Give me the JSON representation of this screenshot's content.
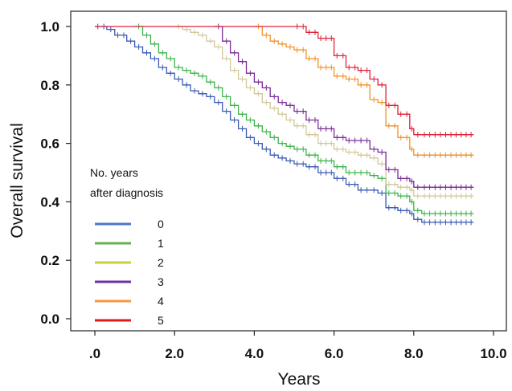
{
  "chart_data": {
    "type": "line",
    "xlabel": "Years",
    "ylabel": "Overall survival",
    "xlim": [
      0,
      10
    ],
    "ylim": [
      0,
      1
    ],
    "x_ticks": [
      ".0",
      "2.0",
      "4.0",
      "6.0",
      "8.0",
      "10.0"
    ],
    "y_ticks": [
      "0.0",
      "0.2",
      "0.4",
      "0.6",
      "0.8",
      "1.0"
    ],
    "grid": false,
    "legend": {
      "title_lines": [
        "No. years",
        "after diagnosis"
      ],
      "placement": "lower-left"
    },
    "series": [
      {
        "name": "0",
        "color": "#3a5bb5",
        "x": [
          0.0,
          0.3,
          0.5,
          0.8,
          1.0,
          1.2,
          1.4,
          1.6,
          1.8,
          2.0,
          2.2,
          2.4,
          2.6,
          2.8,
          3.0,
          3.2,
          3.4,
          3.6,
          3.8,
          4.0,
          4.2,
          4.4,
          4.6,
          4.8,
          5.0,
          5.3,
          5.6,
          6.0,
          6.3,
          6.6,
          6.9,
          7.1,
          7.3,
          7.6,
          7.9,
          8.0,
          8.2,
          8.6,
          9.0,
          9.5
        ],
        "y": [
          1.0,
          0.99,
          0.97,
          0.95,
          0.93,
          0.91,
          0.89,
          0.86,
          0.84,
          0.82,
          0.8,
          0.78,
          0.77,
          0.76,
          0.74,
          0.71,
          0.68,
          0.65,
          0.62,
          0.6,
          0.58,
          0.56,
          0.55,
          0.54,
          0.53,
          0.52,
          0.5,
          0.48,
          0.46,
          0.44,
          0.44,
          0.43,
          0.38,
          0.37,
          0.36,
          0.34,
          0.33,
          0.33,
          0.33,
          0.33
        ]
      },
      {
        "name": "1",
        "color": "#3cb44b",
        "x": [
          1.0,
          1.2,
          1.4,
          1.6,
          1.8,
          2.0,
          2.2,
          2.4,
          2.6,
          2.8,
          3.0,
          3.2,
          3.4,
          3.6,
          3.8,
          4.0,
          4.2,
          4.4,
          4.6,
          4.8,
          5.0,
          5.3,
          5.6,
          6.0,
          6.3,
          6.6,
          6.9,
          7.1,
          7.3,
          7.6,
          7.9,
          8.0,
          8.2,
          8.6,
          9.0,
          9.5
        ],
        "y": [
          1.0,
          0.97,
          0.94,
          0.91,
          0.89,
          0.86,
          0.85,
          0.84,
          0.83,
          0.81,
          0.79,
          0.76,
          0.73,
          0.7,
          0.68,
          0.66,
          0.64,
          0.62,
          0.6,
          0.59,
          0.58,
          0.56,
          0.54,
          0.52,
          0.5,
          0.5,
          0.49,
          0.48,
          0.43,
          0.42,
          0.4,
          0.37,
          0.36,
          0.36,
          0.36,
          0.36
        ]
      },
      {
        "name": "2",
        "color": "#d2c79a",
        "x": [
          2.0,
          2.2,
          2.4,
          2.6,
          2.8,
          3.0,
          3.2,
          3.4,
          3.6,
          3.8,
          4.0,
          4.2,
          4.4,
          4.6,
          4.8,
          5.0,
          5.3,
          5.6,
          6.0,
          6.3,
          6.6,
          6.9,
          7.1,
          7.3,
          7.6,
          7.9,
          8.0,
          8.2,
          8.6,
          9.0,
          9.5
        ],
        "y": [
          1.0,
          0.99,
          0.98,
          0.97,
          0.95,
          0.93,
          0.89,
          0.85,
          0.82,
          0.79,
          0.77,
          0.74,
          0.72,
          0.7,
          0.68,
          0.66,
          0.63,
          0.6,
          0.58,
          0.57,
          0.56,
          0.55,
          0.53,
          0.46,
          0.45,
          0.44,
          0.42,
          0.42,
          0.42,
          0.42,
          0.42
        ]
      },
      {
        "name": "3",
        "color": "#7b2d99",
        "x": [
          3.0,
          3.2,
          3.4,
          3.6,
          3.8,
          4.0,
          4.2,
          4.4,
          4.6,
          4.8,
          5.0,
          5.3,
          5.6,
          6.0,
          6.3,
          6.6,
          6.9,
          7.1,
          7.3,
          7.6,
          7.9,
          8.0,
          8.2,
          8.6,
          9.0,
          9.5
        ],
        "y": [
          1.0,
          0.95,
          0.91,
          0.88,
          0.84,
          0.81,
          0.79,
          0.76,
          0.74,
          0.73,
          0.71,
          0.68,
          0.65,
          0.62,
          0.61,
          0.61,
          0.58,
          0.57,
          0.51,
          0.48,
          0.47,
          0.45,
          0.45,
          0.45,
          0.45,
          0.45
        ]
      },
      {
        "name": "4",
        "color": "#f0922b",
        "x": [
          4.0,
          4.2,
          4.4,
          4.6,
          4.8,
          5.0,
          5.3,
          5.6,
          6.0,
          6.3,
          6.6,
          6.9,
          7.1,
          7.3,
          7.6,
          7.9,
          8.0,
          8.2,
          8.6,
          9.0,
          9.5
        ],
        "y": [
          1.0,
          0.97,
          0.95,
          0.94,
          0.93,
          0.92,
          0.89,
          0.86,
          0.83,
          0.82,
          0.8,
          0.75,
          0.74,
          0.66,
          0.62,
          0.58,
          0.56,
          0.56,
          0.56,
          0.56,
          0.56
        ]
      },
      {
        "name": "5",
        "color": "#e0223a",
        "x": [
          0.0,
          5.0,
          5.3,
          5.6,
          6.0,
          6.3,
          6.6,
          6.9,
          7.1,
          7.3,
          7.6,
          7.9,
          8.0,
          8.2,
          8.6,
          9.0,
          9.5
        ],
        "y": [
          1.0,
          1.0,
          0.98,
          0.96,
          0.9,
          0.86,
          0.85,
          0.82,
          0.8,
          0.73,
          0.7,
          0.65,
          0.63,
          0.63,
          0.63,
          0.63,
          0.63
        ]
      }
    ]
  },
  "legend_colors": {
    "0": "#4a78c8",
    "1": "#6ab04c",
    "2": "#c8d13a",
    "3": "#7030a0",
    "4": "#f79646",
    "5": "#e31a1c"
  }
}
